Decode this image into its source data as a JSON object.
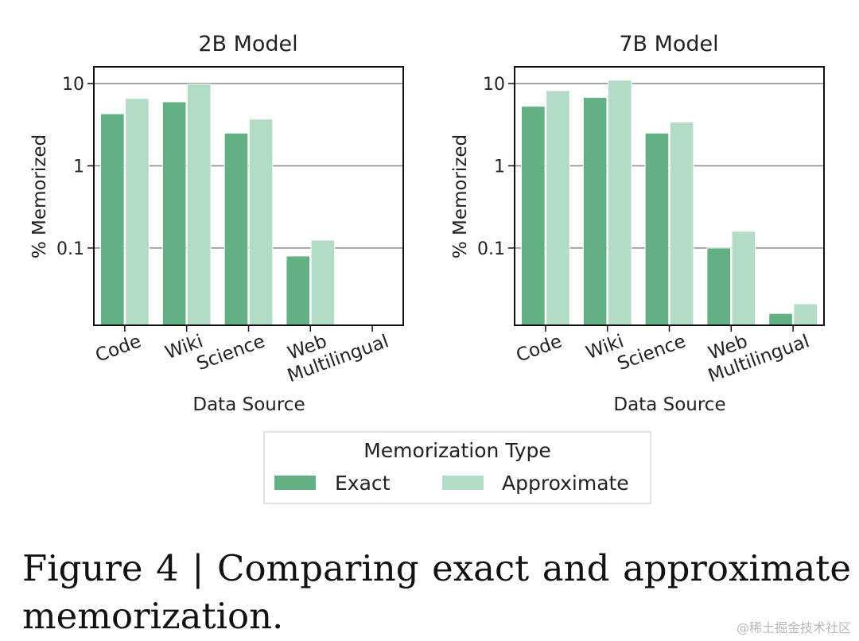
{
  "colors": {
    "exact": "#62b084",
    "approximate": "#b2dcc5",
    "grid": "#888888",
    "axis": "#111111",
    "text": "#222222"
  },
  "chart_data": [
    {
      "type": "bar",
      "title": "2B Model",
      "xlabel": "Data Source",
      "ylabel": "% Memorized",
      "yscale": "log",
      "ylim": [
        0.0115,
        16
      ],
      "yticks": [
        0.1,
        1,
        10
      ],
      "yticklabels": [
        "0.1",
        "1",
        "10"
      ],
      "grid": "y",
      "categories": [
        "Code",
        "Wiki",
        "Science",
        "Web",
        "Multilingual"
      ],
      "series": [
        {
          "name": "Exact",
          "values": [
            4.3,
            6.0,
            2.5,
            0.08,
            null
          ]
        },
        {
          "name": "Approximate",
          "values": [
            6.6,
            9.8,
            3.7,
            0.125,
            null
          ]
        }
      ]
    },
    {
      "type": "bar",
      "title": "7B Model",
      "xlabel": "Data Source",
      "ylabel": "% Memorized",
      "yscale": "log",
      "ylim": [
        0.0115,
        16
      ],
      "yticks": [
        0.1,
        1,
        10
      ],
      "yticklabels": [
        "0.1",
        "1",
        "10"
      ],
      "grid": "y",
      "categories": [
        "Code",
        "Wiki",
        "Science",
        "Web",
        "Multilingual"
      ],
      "series": [
        {
          "name": "Exact",
          "values": [
            5.3,
            6.8,
            2.5,
            0.1,
            0.016
          ]
        },
        {
          "name": "Approximate",
          "values": [
            8.2,
            11.0,
            3.4,
            0.16,
            0.021
          ]
        }
      ]
    }
  ],
  "legend": {
    "title": "Memorization Type",
    "items": [
      "Exact",
      "Approximate"
    ]
  },
  "caption": "Figure 4 | Comparing exact and approximate memorization.",
  "watermark": "@稀土掘金技术社区"
}
